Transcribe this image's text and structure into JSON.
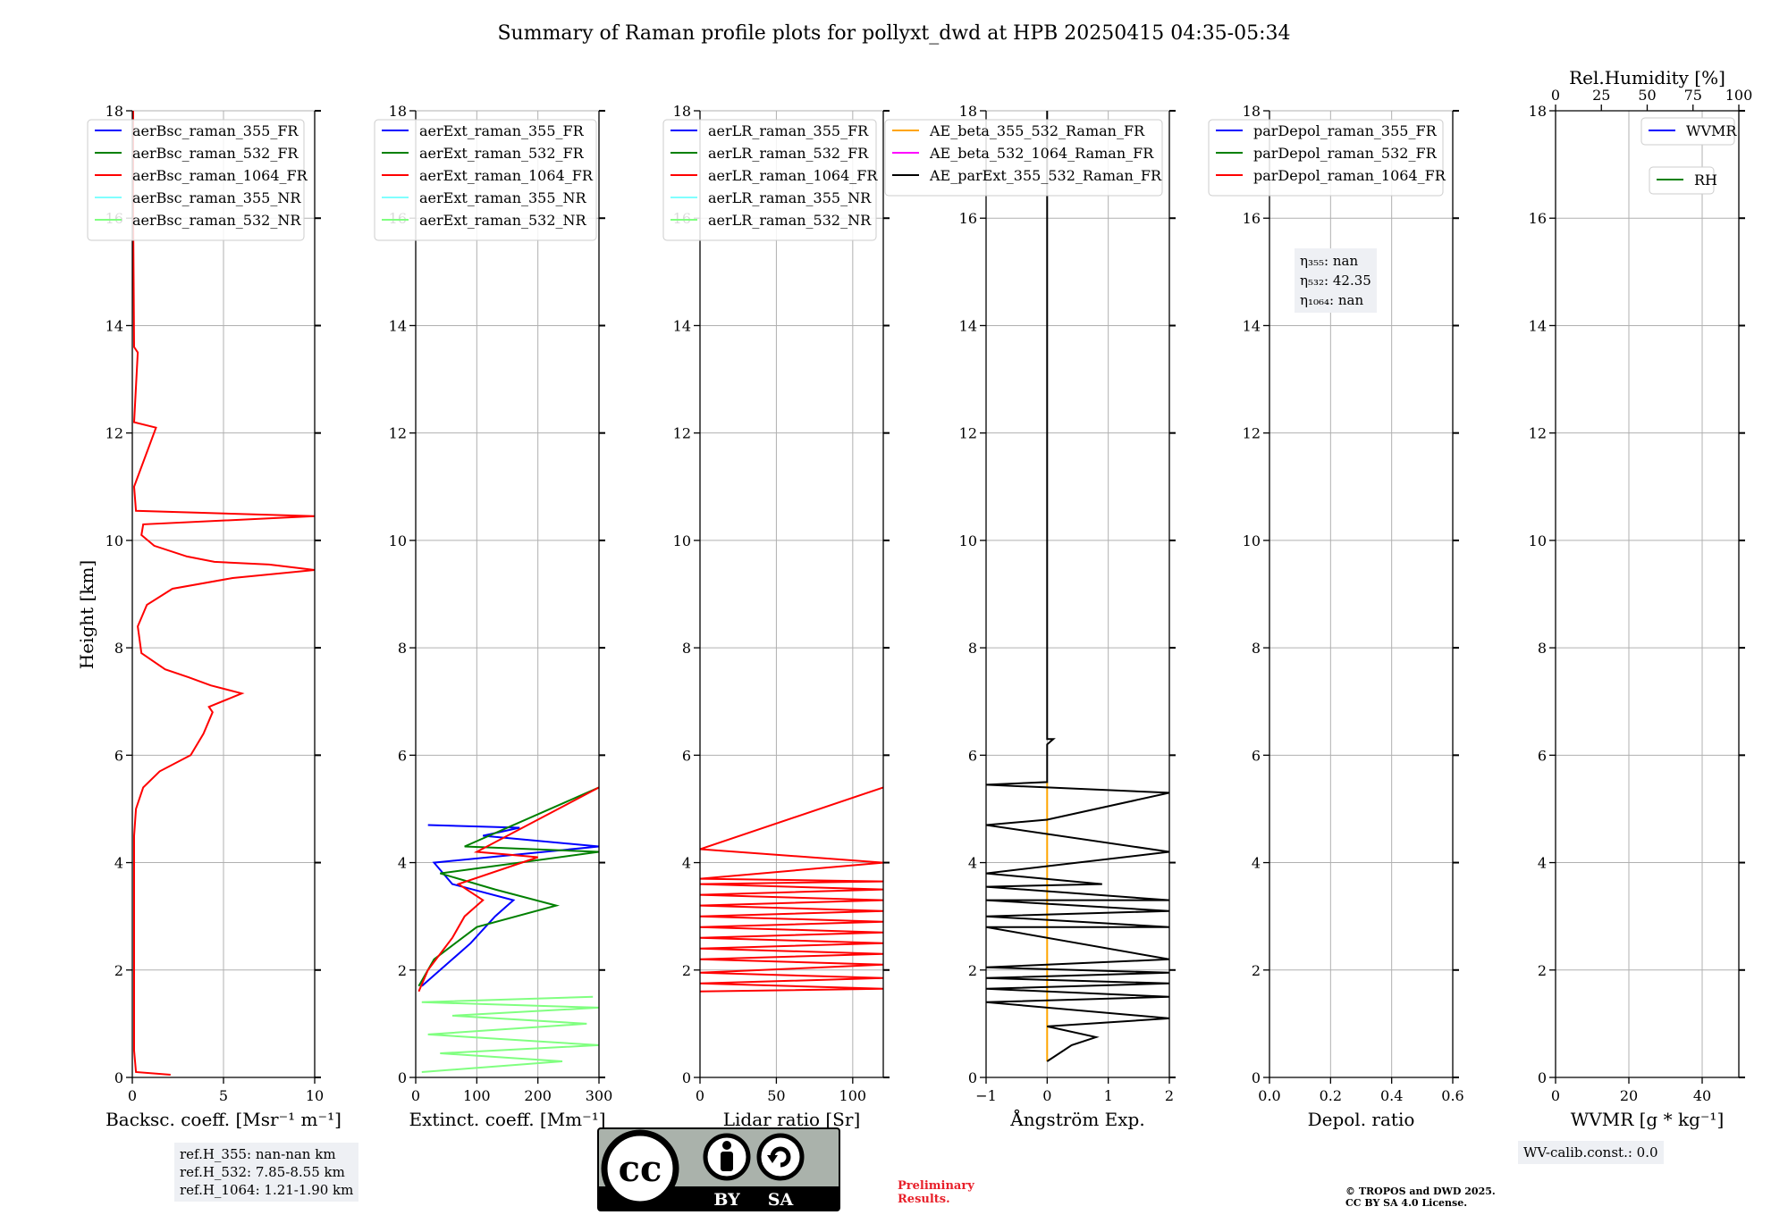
{
  "title": "Summary of Raman profile plots for pollyxt_dwd at HPB 20250415 04:35-05:34",
  "y_label": "Height [km]",
  "colors": {
    "blue": "#0000ff",
    "green": "#008000",
    "red": "#ff0000",
    "cyan": "#80ffff",
    "lightgreen": "#80ff80",
    "orange": "#ffa500",
    "magenta": "#ff00ff",
    "black": "#000000"
  },
  "chart_data": [
    {
      "type": "line",
      "xlabel": "Backsc. coeff. [Msr⁻¹ m⁻¹]",
      "ylabel": "Height [km]",
      "xlim": [
        0,
        10
      ],
      "ylim": [
        0,
        18
      ],
      "xticks": [
        "0",
        "5",
        "10"
      ],
      "yticks": [
        "0",
        "2",
        "4",
        "6",
        "8",
        "10",
        "12",
        "14",
        "16",
        "18"
      ],
      "grid": true,
      "legend": "top-left",
      "series": [
        {
          "name": "aerBsc_raman_355_FR",
          "color": "blue",
          "points": []
        },
        {
          "name": "aerBsc_raman_532_FR",
          "color": "green",
          "points": []
        },
        {
          "name": "aerBsc_raman_1064_FR",
          "color": "red",
          "points": [
            [
              2.1,
              0.05
            ],
            [
              0.2,
              0.1
            ],
            [
              0.1,
              0.5
            ],
            [
              0.1,
              4.5
            ],
            [
              0.2,
              5.0
            ],
            [
              0.6,
              5.4
            ],
            [
              1.5,
              5.7
            ],
            [
              3.2,
              6.0
            ],
            [
              3.9,
              6.4
            ],
            [
              4.4,
              6.8
            ],
            [
              4.2,
              6.9
            ],
            [
              6,
              7.15
            ],
            [
              4.3,
              7.3
            ],
            [
              3.1,
              7.45
            ],
            [
              1.8,
              7.6
            ],
            [
              0.5,
              7.9
            ],
            [
              0.3,
              8.4
            ],
            [
              0.8,
              8.8
            ],
            [
              2.2,
              9.1
            ],
            [
              5.5,
              9.3
            ],
            [
              10,
              9.45
            ],
            [
              7.5,
              9.55
            ],
            [
              4.5,
              9.6
            ],
            [
              3,
              9.7
            ],
            [
              1.2,
              9.9
            ],
            [
              0.5,
              10.1
            ],
            [
              0.6,
              10.3
            ],
            [
              10,
              10.45
            ],
            [
              0.2,
              10.55
            ],
            [
              0.1,
              11.0
            ],
            [
              1.3,
              12.1
            ],
            [
              0.1,
              12.2
            ],
            [
              0.3,
              13.5
            ],
            [
              0.1,
              13.6
            ],
            [
              0.05,
              16.0
            ],
            [
              0.05,
              18.0
            ]
          ]
        },
        {
          "name": "aerBsc_raman_355_NR",
          "color": "cyan",
          "points": []
        },
        {
          "name": "aerBsc_raman_532_NR",
          "color": "lightgreen",
          "points": []
        }
      ]
    },
    {
      "type": "line",
      "xlabel": "Extinct. coeff. [Mm⁻¹]",
      "ylabel": "",
      "xlim": [
        0,
        300
      ],
      "ylim": [
        0,
        18
      ],
      "xticks": [
        "0",
        "100",
        "200",
        "300"
      ],
      "yticks": [
        "0",
        "2",
        "4",
        "6",
        "8",
        "10",
        "12",
        "14",
        "16",
        "18"
      ],
      "grid": true,
      "legend": "top-left",
      "series": [
        {
          "name": "aerExt_raman_355_FR",
          "color": "blue",
          "points": [
            [
              10,
              1.7
            ],
            [
              40,
              2.0
            ],
            [
              90,
              2.5
            ],
            [
              130,
              3.0
            ],
            [
              160,
              3.3
            ],
            [
              60,
              3.6
            ],
            [
              30,
              4.0
            ],
            [
              300,
              4.3
            ],
            [
              110,
              4.5
            ],
            [
              170,
              4.65
            ],
            [
              20,
              4.7
            ]
          ]
        },
        {
          "name": "aerExt_raman_532_FR",
          "color": "green",
          "points": [
            [
              5,
              1.7
            ],
            [
              30,
              2.2
            ],
            [
              100,
              2.8
            ],
            [
              230,
              3.2
            ],
            [
              130,
              3.5
            ],
            [
              40,
              3.8
            ],
            [
              300,
              4.2
            ],
            [
              80,
              4.3
            ],
            [
              300,
              5.4
            ]
          ]
        },
        {
          "name": "aerExt_raman_1064_FR",
          "color": "red",
          "points": [
            [
              5,
              1.6
            ],
            [
              20,
              2.0
            ],
            [
              60,
              2.6
            ],
            [
              80,
              3.0
            ],
            [
              110,
              3.3
            ],
            [
              70,
              3.6
            ],
            [
              200,
              4.1
            ],
            [
              100,
              4.2
            ],
            [
              300,
              5.4
            ]
          ]
        },
        {
          "name": "aerExt_raman_355_NR",
          "color": "cyan",
          "points": []
        },
        {
          "name": "aerExt_raman_532_NR",
          "color": "lightgreen",
          "points": [
            [
              10,
              0.1
            ],
            [
              240,
              0.3
            ],
            [
              40,
              0.45
            ],
            [
              300,
              0.6
            ],
            [
              20,
              0.8
            ],
            [
              280,
              1.0
            ],
            [
              60,
              1.15
            ],
            [
              300,
              1.3
            ],
            [
              10,
              1.4
            ],
            [
              290,
              1.5
            ]
          ]
        }
      ]
    },
    {
      "type": "line",
      "xlabel": "Lidar ratio [Sr]",
      "ylabel": "",
      "xlim": [
        0,
        120
      ],
      "ylim": [
        0,
        18
      ],
      "xticks": [
        "0",
        "50",
        "100"
      ],
      "yticks": [
        "0",
        "2",
        "4",
        "6",
        "8",
        "10",
        "12",
        "14",
        "16",
        "18"
      ],
      "grid": true,
      "legend": "top-left",
      "series": [
        {
          "name": "aerLR_raman_355_FR",
          "color": "blue",
          "points": []
        },
        {
          "name": "aerLR_raman_532_FR",
          "color": "green",
          "points": []
        },
        {
          "name": "aerLR_raman_1064_FR",
          "color": "red",
          "points": [
            [
              0,
              1.6
            ],
            [
              120,
              1.65
            ],
            [
              0,
              1.75
            ],
            [
              120,
              1.85
            ],
            [
              0,
              1.95
            ],
            [
              120,
              2.1
            ],
            [
              0,
              2.2
            ],
            [
              120,
              2.3
            ],
            [
              0,
              2.4
            ],
            [
              120,
              2.5
            ],
            [
              0,
              2.6
            ],
            [
              120,
              2.7
            ],
            [
              0,
              2.8
            ],
            [
              120,
              2.9
            ],
            [
              0,
              3.0
            ],
            [
              120,
              3.1
            ],
            [
              0,
              3.2
            ],
            [
              120,
              3.3
            ],
            [
              0,
              3.4
            ],
            [
              120,
              3.5
            ],
            [
              0,
              3.6
            ],
            [
              120,
              3.65
            ],
            [
              0,
              3.7
            ],
            [
              120,
              4.0
            ],
            [
              0,
              4.25
            ],
            [
              120,
              5.4
            ]
          ]
        },
        {
          "name": "aerLR_raman_355_NR",
          "color": "cyan",
          "points": []
        },
        {
          "name": "aerLR_raman_532_NR",
          "color": "lightgreen",
          "points": []
        }
      ]
    },
    {
      "type": "line",
      "xlabel": "Ångström Exp.",
      "ylabel": "",
      "xlim": [
        -1,
        2
      ],
      "ylim": [
        0,
        18
      ],
      "xticks": [
        "−1",
        "0",
        "1",
        "2"
      ],
      "yticks": [
        "0",
        "2",
        "4",
        "6",
        "8",
        "10",
        "12",
        "14",
        "16",
        "18"
      ],
      "grid": true,
      "legend": "top",
      "series": [
        {
          "name": "AE_beta_355_532_Raman_FR",
          "color": "orange",
          "points": [
            [
              0,
              0.3
            ],
            [
              0,
              1.2
            ],
            [
              0,
              2.2
            ],
            [
              0,
              3.6
            ],
            [
              0,
              4.8
            ],
            [
              0,
              5.5
            ]
          ]
        },
        {
          "name": "AE_beta_532_1064_Raman_FR",
          "color": "magenta",
          "points": []
        },
        {
          "name": "AE_parExt_355_532_Raman_FR",
          "color": "black",
          "points": [
            [
              0,
              0.3
            ],
            [
              0.4,
              0.6
            ],
            [
              0.8,
              0.75
            ],
            [
              0,
              0.95
            ],
            [
              2,
              1.1
            ],
            [
              -1,
              1.4
            ],
            [
              2,
              1.5
            ],
            [
              -1,
              1.65
            ],
            [
              2,
              1.75
            ],
            [
              -1,
              1.85
            ],
            [
              2,
              1.95
            ],
            [
              -1,
              2.05
            ],
            [
              2,
              2.2
            ],
            [
              -1,
              2.8
            ],
            [
              2,
              2.8
            ],
            [
              -1,
              3.0
            ],
            [
              2,
              3.1
            ],
            [
              -1,
              3.3
            ],
            [
              2,
              3.3
            ],
            [
              -1,
              3.55
            ],
            [
              0.9,
              3.6
            ],
            [
              -1,
              3.8
            ],
            [
              2,
              4.2
            ],
            [
              -1,
              4.7
            ],
            [
              0,
              4.8
            ],
            [
              2,
              5.3
            ],
            [
              -1,
              5.45
            ],
            [
              0,
              5.5
            ],
            [
              0,
              6.2
            ],
            [
              0.1,
              6.3
            ],
            [
              0,
              6.3
            ],
            [
              0,
              18
            ]
          ]
        }
      ]
    },
    {
      "type": "line",
      "xlabel": "Depol. ratio",
      "ylabel": "",
      "xlim": [
        0,
        0.6
      ],
      "ylim": [
        0,
        18
      ],
      "xticks": [
        "0.0",
        "0.2",
        "0.4",
        "0.6"
      ],
      "yticks": [
        "0",
        "2",
        "4",
        "6",
        "8",
        "10",
        "12",
        "14",
        "16",
        "18"
      ],
      "grid": true,
      "legend": "top-left",
      "annotation": {
        "eta355": "nan",
        "eta532": "42.35",
        "eta1064": "nan"
      },
      "series": [
        {
          "name": "parDepol_raman_355_FR",
          "color": "blue",
          "points": []
        },
        {
          "name": "parDepol_raman_532_FR",
          "color": "green",
          "points": []
        },
        {
          "name": "parDepol_raman_1064_FR",
          "color": "red",
          "points": []
        }
      ]
    },
    {
      "type": "line",
      "xlabel": "WVMR [g * kg⁻¹]",
      "ylabel": "",
      "top_xlabel": "Rel.Humidity [%]",
      "xlim": [
        0,
        50
      ],
      "ylim": [
        0,
        18
      ],
      "xticks": [
        "0",
        "20",
        "40"
      ],
      "top_xticks": [
        "0",
        "25",
        "50",
        "75",
        "100"
      ],
      "yticks": [
        "0",
        "2",
        "4",
        "6",
        "8",
        "10",
        "12",
        "14",
        "16",
        "18"
      ],
      "grid": true,
      "legend": "top-right",
      "series": [
        {
          "name": "WVMR",
          "color": "blue",
          "points": []
        },
        {
          "name": "RH",
          "color": "green",
          "points": []
        }
      ]
    }
  ],
  "ref_box": {
    "line1": "ref.H_355: nan-nan km",
    "line2": "ref.H_532: 7.85-8.55 km",
    "line3": "ref.H_1064: 1.21-1.90 km"
  },
  "wv_calib": "WV-calib.const.: 0.0",
  "eta_labels": {
    "e355": "η₃₅₅: ",
    "e532": "η₅₃₂: ",
    "e1064": "η₁₀₆₄: "
  },
  "cc_badge": {
    "by": "BY",
    "sa": "SA"
  },
  "preliminary": {
    "line1": "Preliminary",
    "line2": "Results."
  },
  "copyright": {
    "line1": "© TROPOS and DWD 2025.",
    "line2": "CC BY SA 4.0 License."
  }
}
